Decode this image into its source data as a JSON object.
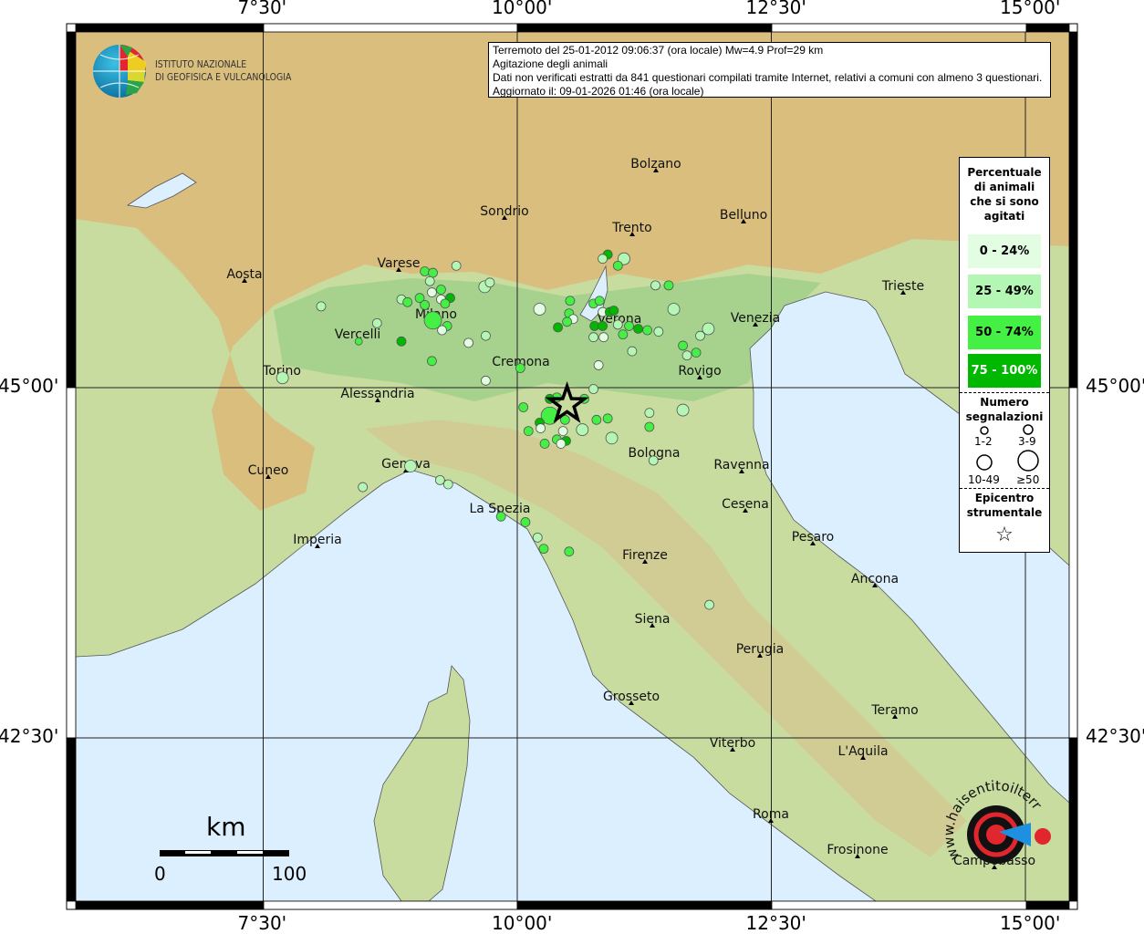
{
  "info": {
    "line1": "Terremoto del 25-01-2012 09:06:37 (ora locale) Mw=4.9 Prof=29 km",
    "line2": "Agitazione degli animali",
    "line3": "Dati non verificati estratti da 841 questionari compilati tramite Internet, relativi a comuni con almeno 3 questionari.",
    "line4": "Aggiornato il: 09-01-2026 01:46 (ora locale)"
  },
  "axes": {
    "top": [
      "7°30'",
      "10°00'",
      "12°30'",
      "15°00'"
    ],
    "bottom": [
      "7°30'",
      "10°00'",
      "12°30'",
      "15°00'"
    ],
    "left": [
      "45°00'",
      "42°30'"
    ],
    "right": [
      "45°00'",
      "42°30'"
    ],
    "lon_ticks": [
      7.5,
      10.0,
      12.5,
      15.0
    ],
    "lat_ticks": [
      45.0,
      42.5
    ]
  },
  "logo_ingv": {
    "line1": "ISTITUTO NAZIONALE",
    "line2": "DI GEOFISICA E VULCANOLOGIA"
  },
  "logo_hsit": {
    "text": "www.haisentitoilterremoto.it"
  },
  "legend": {
    "title": "Percentuale di animali che si sono agitati",
    "classes": [
      {
        "label": "0 - 24%",
        "color": "#e2fde2"
      },
      {
        "label": "25 - 49%",
        "color": "#b4f7b4"
      },
      {
        "label": "50 - 74%",
        "color": "#44f044"
      },
      {
        "label": "75 - 100%",
        "color": "#00b800"
      }
    ],
    "size_title": "Numero segnalazioni",
    "sizes": [
      "1-2",
      "3-9",
      "10-49",
      "≥50"
    ],
    "epicenter_title": "Epicentro strumentale"
  },
  "scale_bar": {
    "unit": "km",
    "start": "0",
    "end": "100"
  },
  "epicenter": {
    "lon": 10.49,
    "lat": 44.88
  },
  "cities": [
    "Bolzano",
    "Sondrio",
    "Trento",
    "Belluno",
    "Aosta",
    "Varese",
    "Milano",
    "Vercelli",
    "Verona",
    "Venezia",
    "Trieste",
    "Torino",
    "Cremona",
    "Rovigo",
    "Alessandria",
    "Bologna",
    "Ravenna",
    "Cuneo",
    "Genova",
    "La Spezia",
    "Cesena",
    "Pesaro",
    "Imperia",
    "Firenze",
    "Ancona",
    "Siena",
    "Perugia",
    "Grosseto",
    "Teramo",
    "Viterbo",
    "L'Aquila",
    "Roma",
    "Frosinone",
    "Campobasso"
  ],
  "points": [
    [
      9.09,
      45.83,
      2,
      1
    ],
    [
      9.17,
      45.82,
      2,
      1
    ],
    [
      9.4,
      45.87,
      1,
      1
    ],
    [
      9.14,
      45.76,
      1,
      1
    ],
    [
      8.86,
      45.63,
      1,
      1
    ],
    [
      8.92,
      45.61,
      2,
      1
    ],
    [
      9.04,
      45.64,
      2,
      1
    ],
    [
      9.09,
      45.59,
      2,
      1
    ],
    [
      9.16,
      45.68,
      0,
      1
    ],
    [
      9.25,
      45.7,
      2,
      1
    ],
    [
      9.25,
      45.63,
      0,
      1
    ],
    [
      9.34,
      45.64,
      3,
      1
    ],
    [
      9.29,
      45.6,
      2,
      1
    ],
    [
      9.17,
      45.48,
      2,
      3
    ],
    [
      9.31,
      45.44,
      2,
      1
    ],
    [
      9.26,
      45.41,
      0,
      1
    ],
    [
      8.86,
      45.33,
      3,
      1
    ],
    [
      9.16,
      45.19,
      2,
      1
    ],
    [
      9.52,
      45.32,
      0,
      1
    ],
    [
      9.69,
      45.37,
      1,
      1
    ],
    [
      9.68,
      45.72,
      1,
      2
    ],
    [
      9.73,
      45.75,
      1,
      1
    ],
    [
      10.03,
      45.14,
      2,
      1
    ],
    [
      9.69,
      45.05,
      0,
      1
    ],
    [
      10.89,
      45.95,
      3,
      1
    ],
    [
      10.84,
      45.92,
      1,
      1
    ],
    [
      11.05,
      45.92,
      1,
      2
    ],
    [
      10.99,
      45.87,
      2,
      1
    ],
    [
      11.36,
      45.73,
      1,
      1
    ],
    [
      11.49,
      45.73,
      2,
      1
    ],
    [
      10.52,
      45.62,
      2,
      1
    ],
    [
      10.75,
      45.6,
      2,
      1
    ],
    [
      10.81,
      45.62,
      2,
      1
    ],
    [
      10.22,
      45.56,
      0,
      2
    ],
    [
      10.51,
      45.53,
      2,
      1
    ],
    [
      10.55,
      45.49,
      0,
      1
    ],
    [
      10.49,
      45.47,
      2,
      1
    ],
    [
      10.4,
      45.43,
      3,
      1
    ],
    [
      10.84,
      45.54,
      0,
      1
    ],
    [
      10.91,
      45.54,
      3,
      1
    ],
    [
      10.95,
      45.55,
      3,
      1
    ],
    [
      10.76,
      45.44,
      3,
      1
    ],
    [
      10.84,
      45.44,
      3,
      1
    ],
    [
      10.99,
      45.45,
      1,
      1
    ],
    [
      11.1,
      45.44,
      2,
      1
    ],
    [
      11.19,
      45.42,
      3,
      1
    ],
    [
      11.28,
      45.41,
      2,
      1
    ],
    [
      11.04,
      45.38,
      2,
      1
    ],
    [
      11.39,
      45.4,
      1,
      1
    ],
    [
      10.75,
      45.36,
      1,
      1
    ],
    [
      10.85,
      45.36,
      0,
      1
    ],
    [
      11.13,
      45.26,
      1,
      1
    ],
    [
      11.54,
      45.56,
      1,
      2
    ],
    [
      11.63,
      45.3,
      2,
      1
    ],
    [
      11.67,
      45.23,
      1,
      1
    ],
    [
      11.76,
      45.25,
      2,
      1
    ],
    [
      11.8,
      45.37,
      1,
      1
    ],
    [
      11.88,
      45.42,
      1,
      2
    ],
    [
      10.8,
      45.16,
      0,
      1
    ],
    [
      10.75,
      44.99,
      1,
      1
    ],
    [
      10.66,
      44.92,
      2,
      1
    ],
    [
      10.39,
      44.93,
      2,
      1
    ],
    [
      10.32,
      44.92,
      3,
      1
    ],
    [
      10.06,
      44.86,
      2,
      1
    ],
    [
      10.32,
      44.8,
      2,
      3
    ],
    [
      10.22,
      44.75,
      3,
      1
    ],
    [
      10.47,
      44.77,
      2,
      1
    ],
    [
      10.11,
      44.69,
      2,
      1
    ],
    [
      10.23,
      44.71,
      0,
      1
    ],
    [
      10.45,
      44.69,
      0,
      1
    ],
    [
      10.64,
      44.7,
      1,
      2
    ],
    [
      10.78,
      44.77,
      2,
      1
    ],
    [
      10.89,
      44.78,
      2,
      1
    ],
    [
      10.39,
      44.63,
      2,
      1
    ],
    [
      10.48,
      44.62,
      3,
      1
    ],
    [
      10.27,
      44.6,
      2,
      1
    ],
    [
      10.43,
      44.6,
      0,
      1
    ],
    [
      10.93,
      44.64,
      1,
      2
    ],
    [
      11.3,
      44.82,
      1,
      1
    ],
    [
      11.3,
      44.72,
      2,
      1
    ],
    [
      11.63,
      44.84,
      1,
      2
    ],
    [
      8.07,
      45.58,
      1,
      1
    ],
    [
      8.62,
      45.46,
      1,
      1
    ],
    [
      8.44,
      45.33,
      2,
      0
    ],
    [
      7.69,
      45.07,
      1,
      2
    ],
    [
      8.95,
      44.44,
      1,
      2
    ],
    [
      9.24,
      44.34,
      1,
      1
    ],
    [
      9.32,
      44.31,
      1,
      1
    ],
    [
      8.48,
      44.29,
      1,
      1
    ],
    [
      9.84,
      44.08,
      2,
      1
    ],
    [
      10.08,
      44.04,
      2,
      1
    ],
    [
      10.2,
      43.93,
      1,
      1
    ],
    [
      10.26,
      43.85,
      2,
      1
    ],
    [
      10.51,
      43.83,
      2,
      1
    ],
    [
      11.89,
      43.45,
      1,
      1
    ],
    [
      11.34,
      44.48,
      1,
      1
    ]
  ],
  "colors": {
    "sea": "#dcefff",
    "plain": "#a9cf8e",
    "mountain": "#d9b06a",
    "grid": "#000000"
  }
}
